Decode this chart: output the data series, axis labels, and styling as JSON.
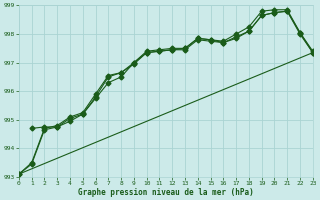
{
  "title": "Graphe pression niveau de la mer (hPa)",
  "bg_color": "#cceae9",
  "grid_color": "#aad4d3",
  "line_color": "#1a5c1a",
  "xlim": [
    0,
    23
  ],
  "ylim": [
    993,
    999
  ],
  "yticks": [
    993,
    994,
    995,
    996,
    997,
    998,
    999
  ],
  "xticks": [
    0,
    1,
    2,
    3,
    4,
    5,
    6,
    7,
    8,
    9,
    10,
    11,
    12,
    13,
    14,
    15,
    16,
    17,
    18,
    19,
    20,
    21,
    22,
    23
  ],
  "line1_x": [
    0,
    1,
    2,
    3,
    4,
    5,
    6,
    7,
    8,
    9,
    10,
    11,
    12,
    13,
    14,
    15,
    16,
    17,
    18,
    19,
    20,
    21,
    22,
    23
  ],
  "line1_y": [
    993.1,
    993.5,
    994.7,
    994.8,
    995.1,
    995.25,
    995.9,
    996.55,
    996.65,
    997.0,
    997.4,
    997.45,
    997.5,
    997.5,
    997.85,
    997.8,
    997.75,
    998.0,
    998.25,
    998.8,
    998.85,
    998.85,
    998.05,
    997.4
  ],
  "line2_x": [
    1,
    2,
    3,
    4,
    5,
    6,
    7,
    8,
    9,
    10,
    11,
    12,
    13,
    14,
    15,
    16,
    17,
    18,
    19,
    20,
    21,
    22,
    23
  ],
  "line2_y": [
    994.7,
    994.75,
    994.75,
    994.95,
    995.2,
    995.75,
    996.3,
    996.5,
    997.0,
    997.35,
    997.4,
    997.45,
    997.5,
    997.85,
    997.8,
    997.7,
    997.9,
    998.1,
    998.65,
    998.75,
    998.8,
    998.05,
    997.35
  ],
  "line3_x": [
    0,
    1,
    2,
    3,
    4,
    5,
    6,
    7,
    8,
    9,
    10,
    11,
    12,
    13,
    14,
    15,
    16,
    17,
    18,
    19,
    20,
    21,
    22,
    23
  ],
  "line3_y": [
    993.1,
    993.45,
    994.65,
    994.75,
    995.05,
    995.2,
    995.8,
    996.5,
    996.65,
    996.95,
    997.35,
    997.4,
    997.45,
    997.45,
    997.8,
    997.75,
    997.7,
    997.85,
    998.1,
    998.65,
    998.75,
    998.8,
    998.0,
    997.35
  ],
  "line4_x": [
    0,
    23
  ],
  "line4_y": [
    993.1,
    997.35
  ],
  "marker_size": 2.5,
  "lw": 0.8
}
